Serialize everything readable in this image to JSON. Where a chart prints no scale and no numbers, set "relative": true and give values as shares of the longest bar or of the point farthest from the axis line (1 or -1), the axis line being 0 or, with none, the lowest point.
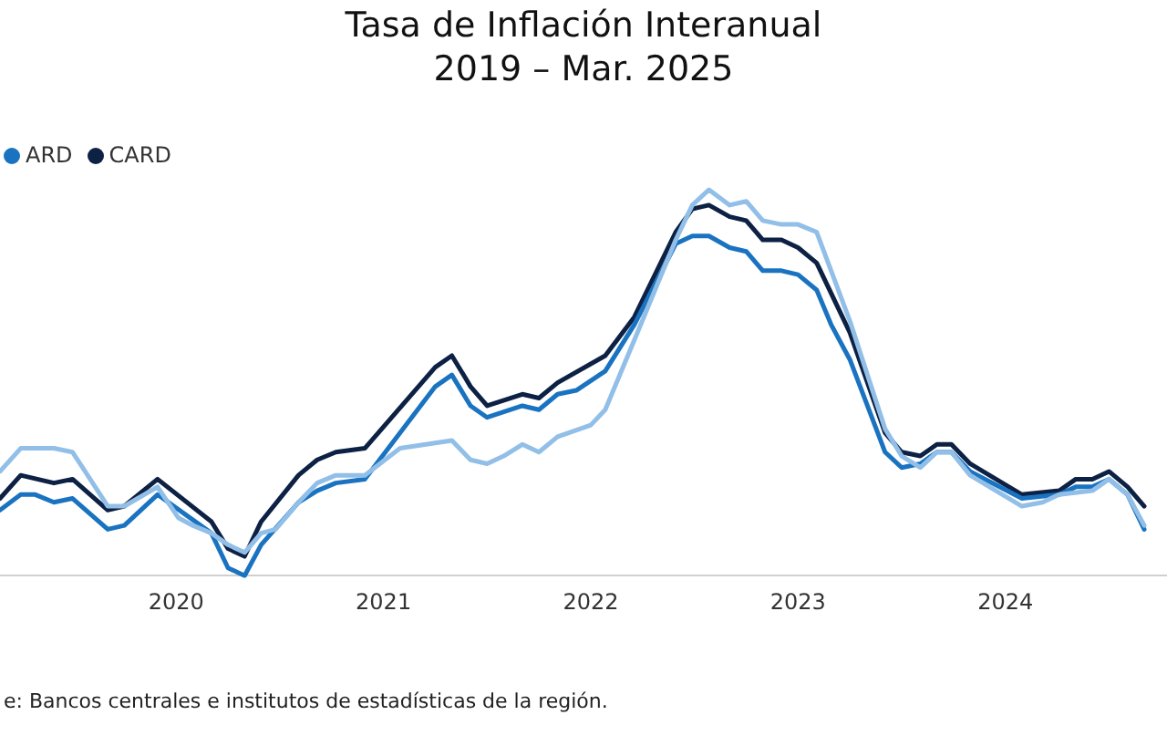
{
  "chart_data": {
    "type": "line",
    "title": "Tasa de Inflación Interanual",
    "subtitle": "2019 – Mar. 2025",
    "relative": true,
    "legend": "top left",
    "tick_labels": "x",
    "grid": false,
    "marker": "none",
    "line_style": "solid",
    "xlim": [
      2019.15,
      2024.78
    ],
    "xticks": [
      2020,
      2021,
      2022,
      2023,
      2024
    ],
    "annotations": [
      "e: Bancos centrales e institutos de estadísticas de la región."
    ],
    "series": [
      {
        "color": "#92bfe8",
        "x": [
          2019.15,
          2019.25,
          2019.41,
          2019.5,
          2019.67,
          2019.75,
          2019.91,
          2020.01,
          2020.08,
          2020.17,
          2020.25,
          2020.33,
          2020.41,
          2020.48,
          2020.59,
          2020.68,
          2020.77,
          2020.91,
          2021.08,
          2021.33,
          2021.42,
          2021.5,
          2021.58,
          2021.67,
          2021.75,
          2021.84,
          2022.0,
          2022.07,
          2022.21,
          2022.41,
          2022.49,
          2022.57,
          2022.67,
          2022.75,
          2022.83,
          2022.92,
          2023.0,
          2023.09,
          2023.25,
          2023.42,
          2023.5,
          2023.59,
          2023.67,
          2023.74,
          2023.83,
          2024.08,
          2024.18,
          2024.26,
          2024.42,
          2024.5,
          2024.59,
          2024.67
        ],
        "values": [
          0.27,
          0.33,
          0.33,
          0.32,
          0.18,
          0.18,
          0.23,
          0.15,
          0.13,
          0.11,
          0.08,
          0.06,
          0.11,
          0.12,
          0.19,
          0.24,
          0.26,
          0.26,
          0.33,
          0.35,
          0.3,
          0.29,
          0.31,
          0.34,
          0.32,
          0.36,
          0.39,
          0.43,
          0.61,
          0.87,
          0.96,
          1,
          0.96,
          0.97,
          0.92,
          0.91,
          0.91,
          0.89,
          0.66,
          0.38,
          0.31,
          0.28,
          0.32,
          0.32,
          0.26,
          0.18,
          0.19,
          0.21,
          0.22,
          0.25,
          0.21,
          0.13
        ]
      },
      {
        "name": "ARD",
        "color": "#1a73c0",
        "x": [
          2019.15,
          2019.25,
          2019.32,
          2019.41,
          2019.5,
          2019.67,
          2019.75,
          2019.91,
          2020.17,
          2020.25,
          2020.33,
          2020.41,
          2020.59,
          2020.68,
          2020.77,
          2020.91,
          2021.25,
          2021.33,
          2021.42,
          2021.5,
          2021.67,
          2021.75,
          2021.84,
          2021.93,
          2022.07,
          2022.21,
          2022.41,
          2022.49,
          2022.57,
          2022.67,
          2022.75,
          2022.83,
          2022.92,
          2023.0,
          2023.09,
          2023.16,
          2023.25,
          2023.42,
          2023.5,
          2023.59,
          2023.67,
          2023.74,
          2023.83,
          2024.08,
          2024.26,
          2024.34,
          2024.42,
          2024.5,
          2024.59,
          2024.67
        ],
        "values": [
          0.17,
          0.21,
          0.21,
          0.19,
          0.2,
          0.12,
          0.13,
          0.21,
          0.11,
          0.02,
          0,
          0.08,
          0.19,
          0.22,
          0.24,
          0.25,
          0.49,
          0.52,
          0.44,
          0.41,
          0.44,
          0.43,
          0.47,
          0.48,
          0.53,
          0.65,
          0.86,
          0.88,
          0.88,
          0.85,
          0.84,
          0.79,
          0.79,
          0.78,
          0.74,
          0.65,
          0.56,
          0.32,
          0.28,
          0.29,
          0.32,
          0.32,
          0.27,
          0.2,
          0.21,
          0.23,
          0.23,
          0.25,
          0.21,
          0.12
        ]
      },
      {
        "name": "CARD",
        "color": "#0d2144",
        "x": [
          2019.15,
          2019.25,
          2019.41,
          2019.5,
          2019.67,
          2019.75,
          2019.91,
          2020.17,
          2020.25,
          2020.33,
          2020.41,
          2020.59,
          2020.68,
          2020.77,
          2020.91,
          2021.25,
          2021.33,
          2021.42,
          2021.5,
          2021.67,
          2021.75,
          2021.84,
          2022.07,
          2022.21,
          2022.41,
          2022.49,
          2022.57,
          2022.67,
          2022.75,
          2022.83,
          2022.92,
          2023.0,
          2023.09,
          2023.25,
          2023.42,
          2023.5,
          2023.59,
          2023.67,
          2023.74,
          2023.83,
          2024.08,
          2024.26,
          2024.34,
          2024.42,
          2024.5,
          2024.59,
          2024.67
        ],
        "values": [
          0.2,
          0.26,
          0.24,
          0.25,
          0.17,
          0.18,
          0.25,
          0.14,
          0.07,
          0.05,
          0.14,
          0.26,
          0.3,
          0.32,
          0.33,
          0.54,
          0.57,
          0.49,
          0.44,
          0.47,
          0.46,
          0.5,
          0.57,
          0.67,
          0.89,
          0.95,
          0.96,
          0.93,
          0.92,
          0.87,
          0.87,
          0.85,
          0.81,
          0.63,
          0.37,
          0.32,
          0.31,
          0.34,
          0.34,
          0.29,
          0.21,
          0.22,
          0.25,
          0.25,
          0.27,
          0.23,
          0.18
        ]
      }
    ]
  }
}
